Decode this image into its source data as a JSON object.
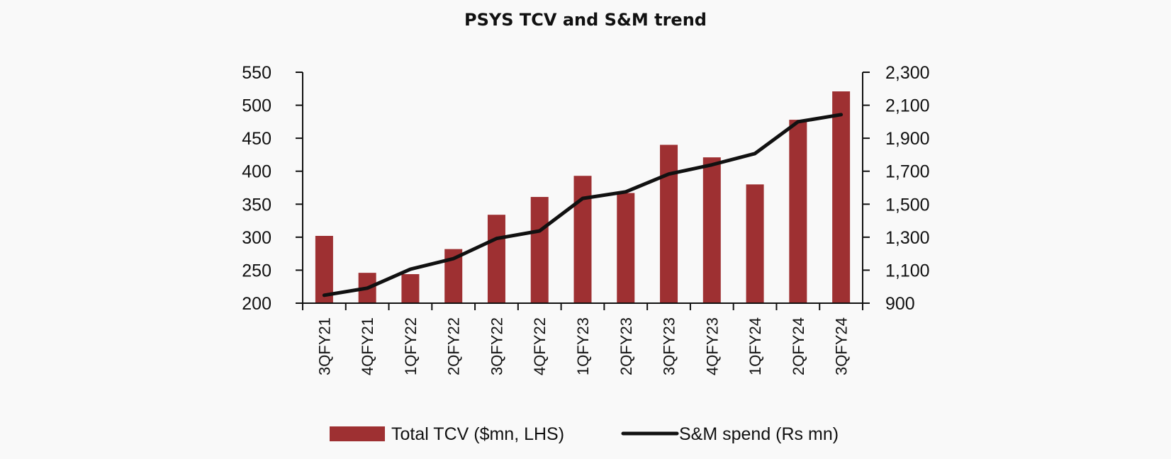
{
  "chart_data": {
    "type": "bar",
    "title": "PSYS TCV and S&M trend",
    "xlabel": "",
    "ylabel": "",
    "y2label": "",
    "categories": [
      "3QFY21",
      "4QFY21",
      "1QFY22",
      "2QFY22",
      "3QFY22",
      "4QFY22",
      "1QFY23",
      "2QFY23",
      "3QFY23",
      "4QFY23",
      "1QFY24",
      "2QFY24",
      "3QFY24"
    ],
    "series": [
      {
        "name": "Total TCV ($mn, LHS)",
        "type": "bar",
        "axis": "left",
        "color": "#9e3032",
        "values": [
          302,
          246,
          244,
          282,
          334,
          361,
          393,
          367,
          440,
          421,
          380,
          478,
          521
        ]
      },
      {
        "name": "S&M spend (Rs mn)",
        "type": "line",
        "axis": "right",
        "color": "#111111",
        "values": [
          948,
          991,
          1106,
          1170,
          1292,
          1338,
          1535,
          1575,
          1683,
          1739,
          1807,
          2000,
          2043
        ]
      }
    ],
    "ylim": [
      200,
      550
    ],
    "y_ticks": [
      200,
      250,
      300,
      350,
      400,
      450,
      500,
      550
    ],
    "y_tick_labels": [
      "200",
      "250",
      "300",
      "350",
      "400",
      "450",
      "500",
      "550"
    ],
    "y2lim": [
      900,
      2300
    ],
    "y2_ticks": [
      900,
      1100,
      1300,
      1500,
      1700,
      1900,
      2100,
      2300
    ],
    "y2_tick_labels": [
      "900",
      "1,100",
      "1,300",
      "1,500",
      "1,700",
      "1,900",
      "2,100",
      "2,300"
    ],
    "grid": false,
    "legend_position": "bottom"
  }
}
